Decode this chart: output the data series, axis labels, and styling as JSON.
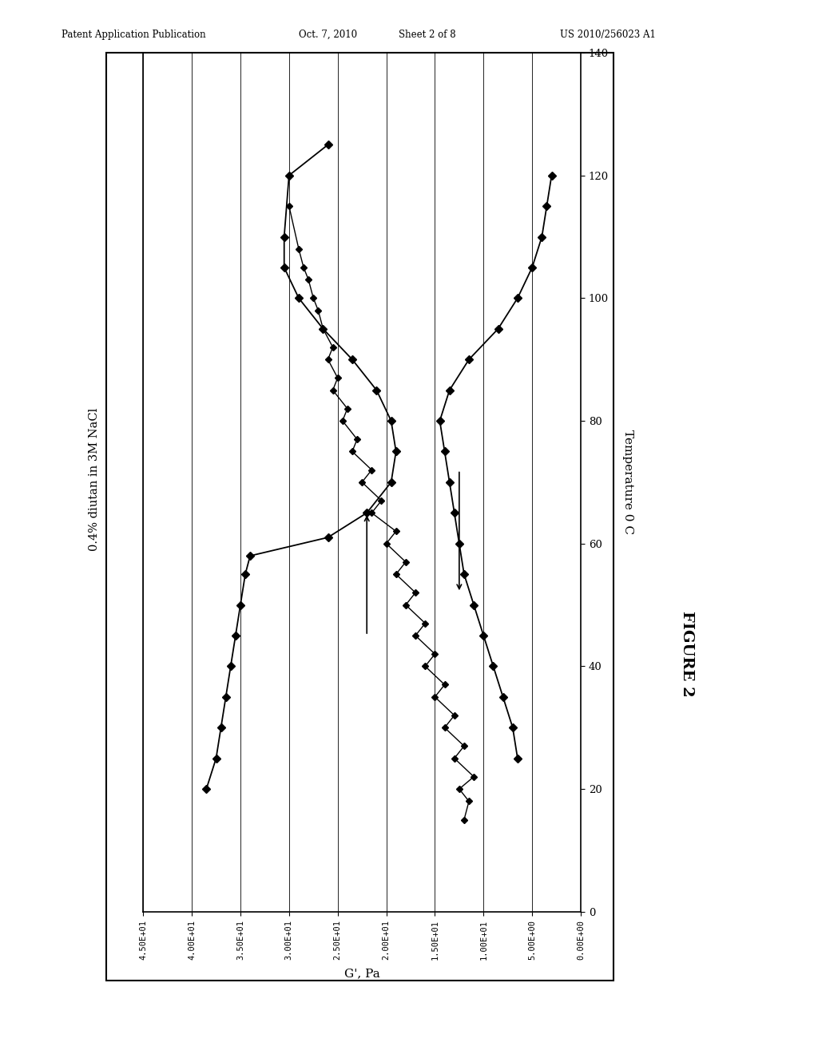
{
  "header_left": "Patent Application Publication",
  "header_mid1": "Oct. 7, 2010",
  "header_mid2": "Sheet 2 of 8",
  "header_right": "US 2010/256023 A1",
  "figure_label": "FIGURE 2",
  "x_label": "G', Pa",
  "y_label_right": "Temperature 0 C",
  "y_label_left": "0.4% diutan in 3M NaCl",
  "x_tick_vals": [
    45,
    40,
    35,
    30,
    25,
    20,
    15,
    10,
    5,
    0
  ],
  "x_tick_labels": [
    "4.50E+01",
    "4.00E+01",
    "3.50E+01",
    "3.00E+01",
    "2.50E+01",
    "2.00E+01",
    "1.50E+01",
    "1.00E+01",
    "5.00E+00",
    "0.00E+00"
  ],
  "y_ticks": [
    0,
    20,
    40,
    60,
    80,
    100,
    120,
    140
  ],
  "xlim": [
    0,
    45
  ],
  "ylim": [
    0,
    140
  ],
  "curve1_G": [
    38.5,
    37.5,
    37.0,
    36.5,
    36.0,
    35.5,
    35.0,
    34.5,
    34.0,
    26.0,
    22.0,
    19.5,
    19.0,
    19.5,
    21.0,
    23.5,
    26.5,
    29.0,
    30.5,
    30.5,
    30.0,
    26.0
  ],
  "curve1_T": [
    20,
    25,
    30,
    35,
    40,
    45,
    50,
    55,
    58,
    61,
    65,
    70,
    75,
    80,
    85,
    90,
    95,
    100,
    105,
    110,
    120,
    125
  ],
  "curve2_G": [
    12.0,
    11.5,
    12.5,
    11.0,
    13.0,
    12.0,
    14.0,
    13.0,
    15.0,
    14.0,
    16.0,
    15.0,
    17.0,
    16.0,
    18.0,
    17.0,
    19.0,
    18.0,
    20.0,
    19.0,
    21.5,
    20.5,
    22.5,
    21.5,
    23.5,
    23.0,
    24.5,
    24.0,
    25.5,
    25.0,
    26.0,
    25.5,
    26.5,
    27.0,
    27.5,
    28.0,
    28.5,
    29.0,
    30.0
  ],
  "curve2_T": [
    15,
    18,
    20,
    22,
    25,
    27,
    30,
    32,
    35,
    37,
    40,
    42,
    45,
    47,
    50,
    52,
    55,
    57,
    60,
    62,
    65,
    67,
    70,
    72,
    75,
    77,
    80,
    82,
    85,
    87,
    90,
    92,
    95,
    98,
    100,
    103,
    105,
    108,
    115
  ],
  "curve3_G": [
    3.0,
    3.5,
    4.0,
    5.0,
    6.5,
    8.5,
    11.5,
    13.5,
    14.5,
    14.0,
    13.5,
    13.0,
    12.5,
    12.0,
    11.0,
    10.0,
    9.0,
    8.0,
    7.0,
    6.5
  ],
  "curve3_T": [
    120,
    115,
    110,
    105,
    100,
    95,
    90,
    85,
    80,
    75,
    70,
    65,
    60,
    55,
    50,
    45,
    40,
    35,
    30,
    25
  ],
  "up_arrow_G": 22.0,
  "up_arrow_T1": 45,
  "up_arrow_T2": 65,
  "down_arrow_G": 12.5,
  "down_arrow_T1": 72,
  "down_arrow_T2": 52,
  "background_color": "#ffffff",
  "line_color": "#000000",
  "vgrid_positions": [
    5,
    10,
    15,
    20,
    25,
    30,
    35,
    40,
    45
  ]
}
